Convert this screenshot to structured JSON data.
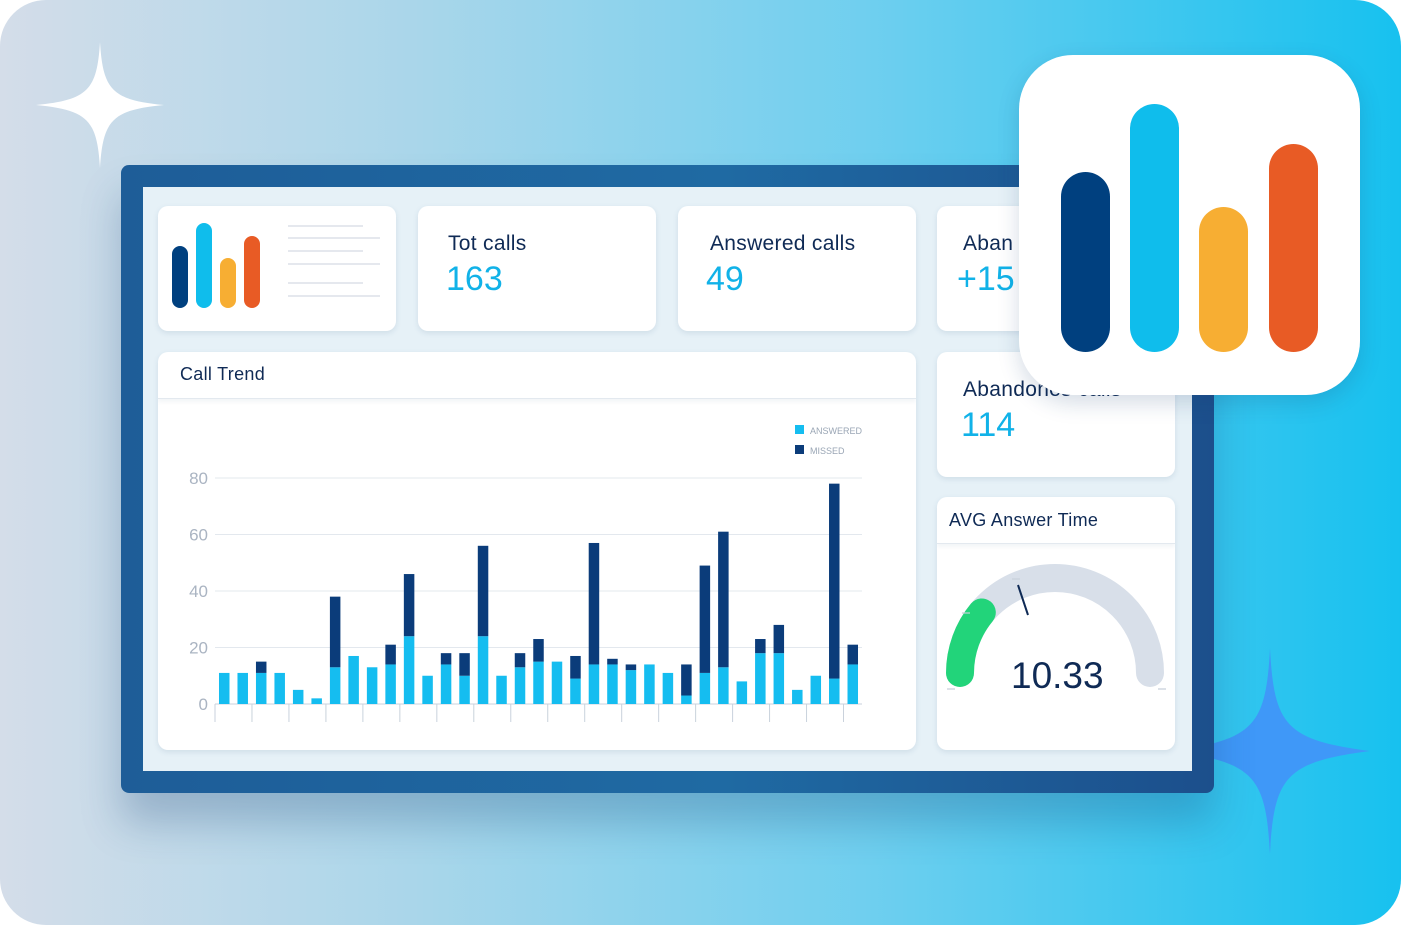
{
  "colors": {
    "navy": "#00407f",
    "cyan": "#0fbdec",
    "yellow": "#f7ae33",
    "orange": "#e85b25",
    "answered": "#15bdf0",
    "missed": "#0b3c7a",
    "gauge_fill": "#22d47a",
    "gauge_track": "#d8dfe9"
  },
  "kpis": {
    "total_calls": {
      "label": "Tot calls",
      "value": "163"
    },
    "answered_calls": {
      "label": "Answered calls",
      "value": "49"
    },
    "abandoned_partial": {
      "label": "Aban",
      "value": "+15"
    },
    "abandoned_calls": {
      "label": "Abandones calls",
      "value": "114"
    }
  },
  "call_trend": {
    "title": "Call Trend"
  },
  "avg_answer": {
    "title": "AVG Answer Time",
    "value": "10.33",
    "gauge_fraction": 0.22
  },
  "chart_data": {
    "type": "bar",
    "stacked": true,
    "ylim": [
      0,
      80
    ],
    "yticks": [
      "80",
      "60",
      "40",
      "20",
      "0"
    ],
    "legend": [
      "ANSWERED",
      "MISSED"
    ],
    "legend_position": "top-right",
    "grid": true,
    "series": [
      {
        "name": "ANSWERED",
        "values": [
          11,
          11,
          11,
          11,
          5,
          2,
          13,
          17,
          13,
          14,
          24,
          10,
          14,
          10,
          24,
          10,
          13,
          15,
          15,
          9,
          14,
          14,
          12,
          14,
          11,
          3,
          11,
          13,
          8,
          18,
          18,
          5,
          10,
          9,
          14
        ]
      },
      {
        "name": "MISSED",
        "values": [
          0,
          0,
          4,
          0,
          0,
          0,
          25,
          0,
          0,
          7,
          22,
          0,
          4,
          8,
          32,
          0,
          5,
          8,
          0,
          8,
          43,
          2,
          2,
          0,
          0,
          11,
          38,
          48,
          0,
          5,
          10,
          0,
          0,
          69,
          7
        ]
      }
    ]
  }
}
